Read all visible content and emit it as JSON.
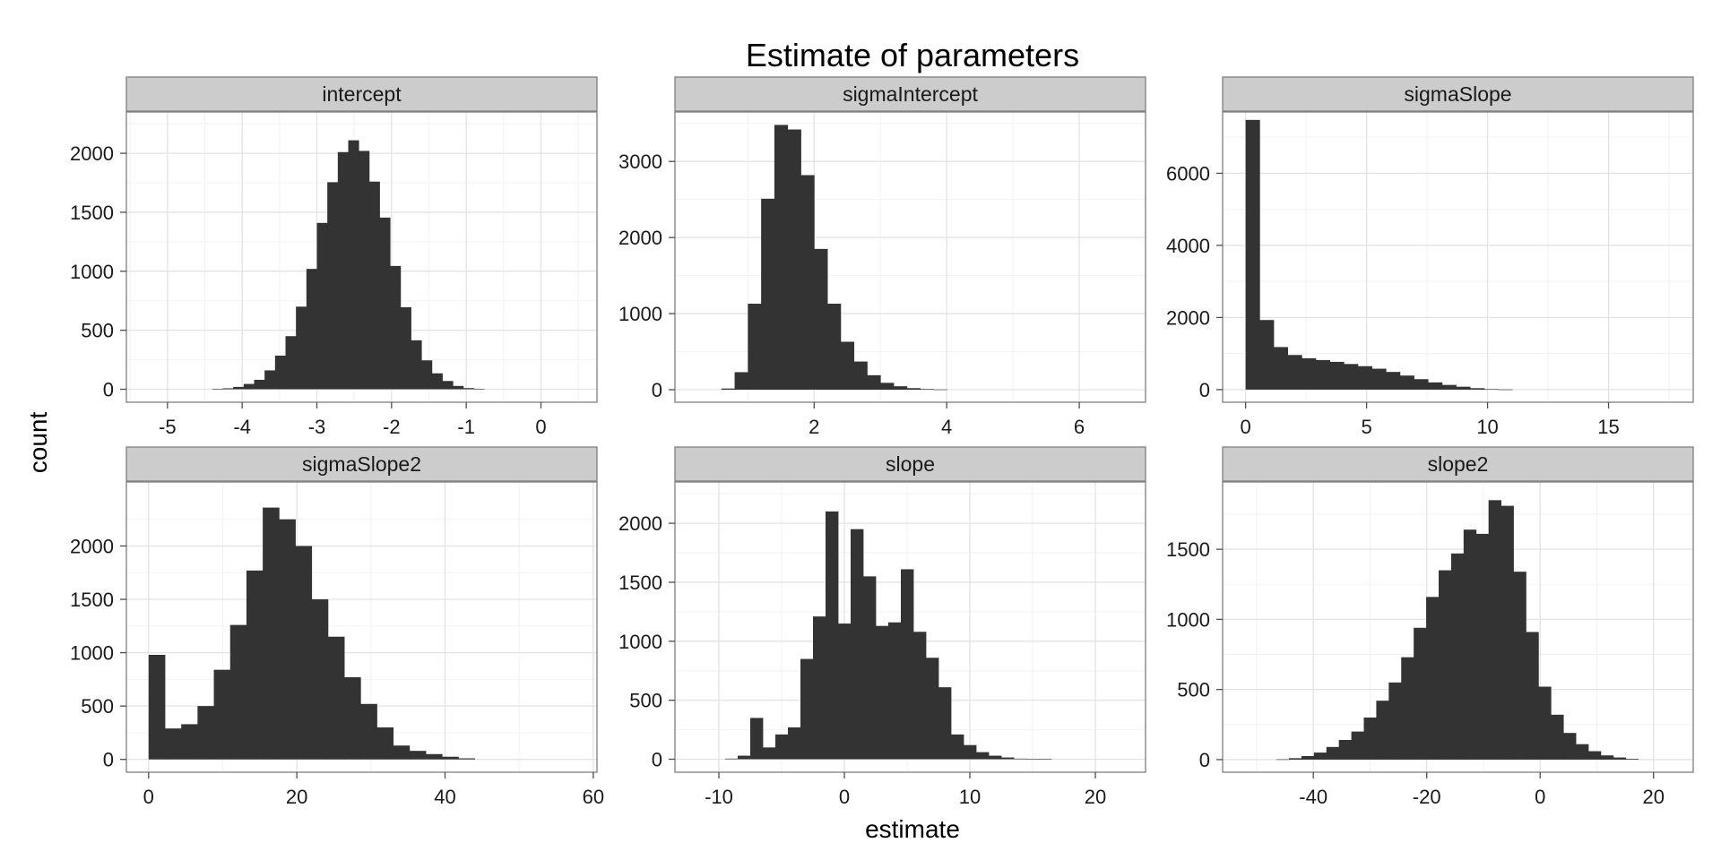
{
  "chart_data": {
    "type": "bar",
    "title": "Estimate of parameters",
    "xlabel": "estimate",
    "ylabel": "count",
    "grid": true,
    "legend": "none",
    "bar_color": "#333333",
    "panels": [
      {
        "name": "intercept",
        "xlim": [
          -5.55,
          0.75
        ],
        "ylim": [
          -110,
          2350
        ],
        "xticks": [
          -5,
          -4,
          -3,
          -2,
          -1,
          0
        ],
        "yticks": [
          0,
          500,
          1000,
          1500,
          2000
        ],
        "bin_start": -4.4,
        "bin_width": 0.14,
        "values": [
          2,
          8,
          20,
          45,
          80,
          160,
          285,
          450,
          700,
          1020,
          1410,
          1755,
          2010,
          2110,
          2020,
          1760,
          1455,
          1045,
          695,
          415,
          245,
          135,
          70,
          28,
          10,
          3
        ]
      },
      {
        "name": "sigmaIntercept",
        "xlim": [
          -0.1,
          7.0
        ],
        "ylim": [
          -165,
          3650
        ],
        "xticks": [
          2,
          4,
          6
        ],
        "yticks": [
          0,
          1000,
          2000,
          3000
        ],
        "bin_start": 0.6,
        "bin_width": 0.2,
        "values": [
          15,
          230,
          1130,
          2510,
          3480,
          3420,
          2820,
          1850,
          1130,
          630,
          370,
          190,
          90,
          45,
          20,
          8,
          3
        ]
      },
      {
        "name": "sigmaSlope",
        "xlim": [
          -0.95,
          18.5
        ],
        "ylim": [
          -350,
          7700
        ],
        "xticks": [
          0,
          5,
          10,
          15
        ],
        "yticks": [
          0,
          2000,
          4000,
          6000
        ],
        "bin_start": 0.0,
        "bin_width": 0.58,
        "values": [
          7480,
          1930,
          1180,
          960,
          870,
          820,
          770,
          710,
          650,
          580,
          490,
          390,
          290,
          200,
          130,
          80,
          40,
          15,
          5
        ]
      },
      {
        "name": "sigmaSlope2",
        "xlim": [
          -3.0,
          60.5
        ],
        "ylim": [
          -120,
          2600
        ],
        "xticks": [
          0,
          20,
          40,
          60
        ],
        "yticks": [
          0,
          500,
          1000,
          1500,
          2000
        ],
        "bin_start": 0.0,
        "bin_width": 2.2,
        "values": [
          980,
          290,
          330,
          500,
          840,
          1260,
          1770,
          2360,
          2250,
          2000,
          1500,
          1150,
          770,
          520,
          300,
          130,
          80,
          50,
          25,
          10
        ]
      },
      {
        "name": "slope",
        "xlim": [
          -13.5,
          24.0
        ],
        "ylim": [
          -110,
          2350
        ],
        "xticks": [
          -10,
          0,
          10,
          20
        ],
        "yticks": [
          0,
          500,
          1000,
          1500,
          2000
        ],
        "bin_start": -9.5,
        "bin_width": 1.0,
        "values": [
          5,
          30,
          350,
          100,
          210,
          270,
          850,
          1210,
          2100,
          1150,
          1950,
          1550,
          1130,
          1160,
          1610,
          1080,
          860,
          610,
          210,
          120,
          60,
          30,
          15,
          5,
          2,
          1
        ]
      },
      {
        "name": "slope2",
        "xlim": [
          -56.0,
          27.0
        ],
        "ylim": [
          -90,
          1980
        ],
        "xticks": [
          -40,
          -20,
          0,
          20
        ],
        "yticks": [
          0,
          500,
          1000,
          1500
        ],
        "bin_start": -46.5,
        "bin_width": 2.2,
        "values": [
          2,
          10,
          25,
          50,
          90,
          140,
          200,
          300,
          420,
          550,
          730,
          940,
          1160,
          1350,
          1470,
          1640,
          1610,
          1850,
          1810,
          1340,
          910,
          520,
          320,
          190,
          110,
          60,
          30,
          15,
          5
        ]
      }
    ]
  }
}
